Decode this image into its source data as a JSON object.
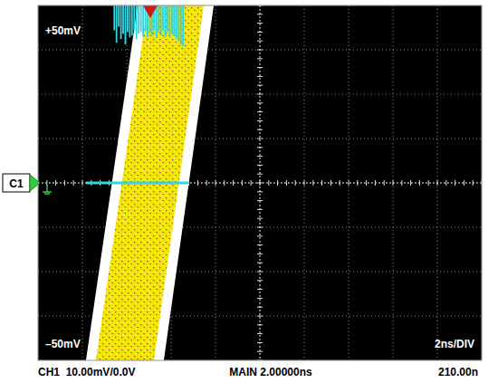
{
  "chart_data": {
    "type": "eye_diagram",
    "xlim": [
      0,
      20
    ],
    "xticks": [
      0,
      2,
      4,
      6,
      8,
      10,
      12,
      14,
      16,
      18,
      20
    ],
    "ylim": [
      -40,
      40
    ],
    "yticks": [
      -40,
      -30,
      -20,
      -10,
      0,
      10,
      20,
      30,
      40
    ],
    "grid": true,
    "tick_labels": false,
    "color": "#f2e600",
    "band": {
      "y": [
        -40,
        0,
        40
      ],
      "x_lower": [
        2.16,
        3.33,
        4.49
      ],
      "x_upper": [
        5.67,
        6.8,
        7.92
      ]
    },
    "histogram": {
      "color": "#33d6e0",
      "bins": [
        3.4,
        3.5,
        3.6,
        3.7,
        3.8,
        3.9,
        4.0,
        4.1,
        4.2,
        4.3,
        4.4,
        4.5,
        4.6,
        4.7,
        4.8,
        4.9,
        5.0,
        5.1,
        5.2,
        5.3,
        5.4,
        5.5,
        5.6,
        5.7,
        5.8,
        5.9,
        6.0,
        6.1,
        6.2,
        6.3,
        6.4,
        6.5,
        6.6
      ],
      "counts": [
        70,
        105,
        60,
        95,
        80,
        110,
        75,
        90,
        85,
        70,
        95,
        80,
        75,
        88,
        72,
        90,
        78,
        85,
        70,
        92,
        76,
        84,
        70,
        88,
        74,
        90,
        80,
        86,
        95,
        100,
        110,
        115
      ],
      "ylim": [
        0,
        1000
      ]
    },
    "window": {
      "color": "#33d6e0",
      "x": [
        2.16,
        6.8
      ],
      "y": 0
    },
    "cursor_x": 5.06,
    "channel_label": "C1",
    "annotations": {
      "top_left": "+50mV",
      "bottom_left": "–50mV",
      "bottom_right": "2ns/DIV"
    },
    "status_bar": [
      "CH1  10.00mV/0.0V",
      "MAIN 2.00000ns",
      "210.00n"
    ]
  }
}
